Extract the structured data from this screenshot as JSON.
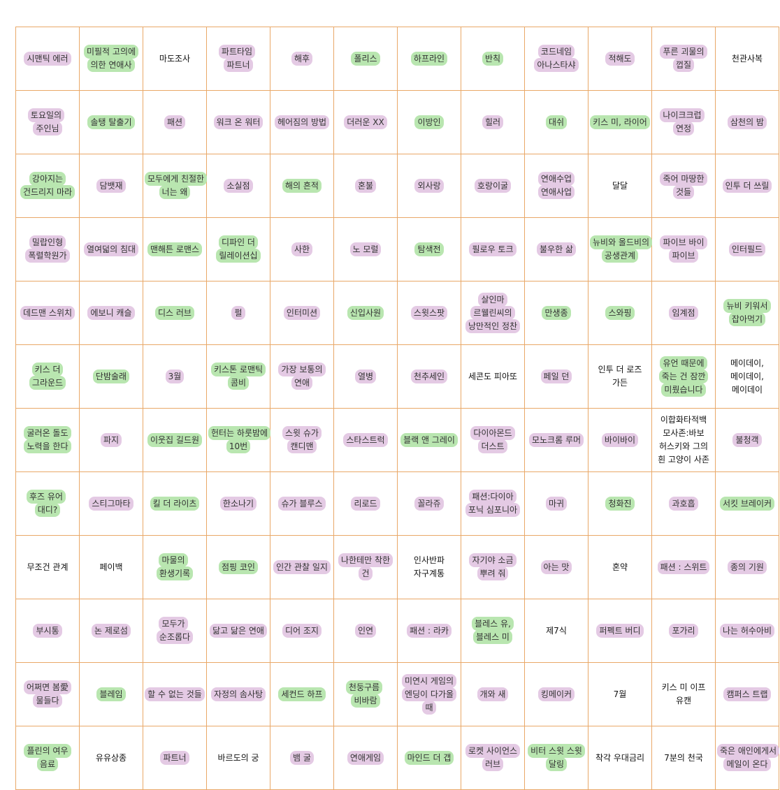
{
  "grid": {
    "rows": [
      [
        {
          "text": "시맨틱 에러",
          "highlight": "#e4cae4"
        },
        {
          "text": "미필적 고의에 의한 연애사",
          "highlight": "#b9e6b0"
        },
        {
          "text": "마도조사"
        },
        {
          "text": "파트타임 파트너",
          "highlight": "#e4cae4"
        },
        {
          "text": "해후",
          "highlight": "#e4cae4"
        },
        {
          "text": "폴리스",
          "highlight": "#b9e6b0"
        },
        {
          "text": "하프라인",
          "highlight": "#b9e6b0"
        },
        {
          "text": "반칙",
          "highlight": "#b9e6b0"
        },
        {
          "text": "코드네임 아나스타샤",
          "highlight": "#e4cae4"
        },
        {
          "text": "적해도",
          "highlight": "#e4cae4"
        },
        {
          "text": "푸른 괴물의 껍질",
          "highlight": "#e4cae4"
        },
        {
          "text": "천관사복"
        }
      ],
      [
        {
          "text": "토요일의 주인님",
          "highlight": "#e4cae4"
        },
        {
          "text": "솔탱 탈출기",
          "highlight": "#b9e6b0"
        },
        {
          "text": "패션",
          "highlight": "#e4cae4"
        },
        {
          "text": "워크 온 워터",
          "highlight": "#e4cae4"
        },
        {
          "text": "헤어짐의 방법",
          "highlight": "#e4cae4"
        },
        {
          "text": "더러운 XX",
          "highlight": "#e4cae4"
        },
        {
          "text": "이방인",
          "highlight": "#b9e6b0"
        },
        {
          "text": "힐러",
          "highlight": "#e4cae4"
        },
        {
          "text": "대쉬",
          "highlight": "#b9e6b0"
        },
        {
          "text": "키스 미, 라이어",
          "highlight": "#b9e6b0"
        },
        {
          "text": "나이크크럽 연정",
          "highlight": "#e4cae4"
        },
        {
          "text": "삼천의 밤",
          "highlight": "#e4cae4"
        }
      ],
      [
        {
          "text": "강아지는 건드리지 마라",
          "highlight": "#b9e6b0"
        },
        {
          "text": "담뱃재",
          "highlight": "#e4cae4"
        },
        {
          "text": "모두에게 친절한 너는 왜",
          "highlight": "#b9e6b0"
        },
        {
          "text": "소실점",
          "highlight": "#e4cae4"
        },
        {
          "text": "해의 흔적",
          "highlight": "#b9e6b0"
        },
        {
          "text": "혼불",
          "highlight": "#e4cae4"
        },
        {
          "text": "외사랑",
          "highlight": "#e4cae4"
        },
        {
          "text": "호랑이굴",
          "highlight": "#e4cae4"
        },
        {
          "text": "연애수업 연애사업",
          "highlight": "#e4cae4"
        },
        {
          "text": "달달"
        },
        {
          "text": "죽어 마땅한 것들",
          "highlight": "#e4cae4"
        },
        {
          "text": "인투 더 쓰릴",
          "highlight": "#e4cae4"
        }
      ],
      [
        {
          "text": "밀랍인형 폭렬학원가",
          "highlight": "#e4cae4"
        },
        {
          "text": "열여덟의 침대",
          "highlight": "#e4cae4"
        },
        {
          "text": "맨해튼 로맨스",
          "highlight": "#b9e6b0"
        },
        {
          "text": "디파인 더 릴레이션십",
          "highlight": "#b9e6b0"
        },
        {
          "text": "사한",
          "highlight": "#e4cae4"
        },
        {
          "text": "노 모럴",
          "highlight": "#e4cae4"
        },
        {
          "text": "탐색전",
          "highlight": "#b9e6b0"
        },
        {
          "text": "필로우 토크",
          "highlight": "#e4cae4"
        },
        {
          "text": "불우한 삶",
          "highlight": "#e4cae4"
        },
        {
          "text": "뉴비와 올드비의 공생관계",
          "highlight": "#b9e6b0"
        },
        {
          "text": "파이브 바이 파이브",
          "highlight": "#e4cae4"
        },
        {
          "text": "인터필드",
          "highlight": "#e4cae4"
        }
      ],
      [
        {
          "text": "데드맨 스위치",
          "highlight": "#e4cae4"
        },
        {
          "text": "에보니 캐슬",
          "highlight": "#e4cae4"
        },
        {
          "text": "디스 러브",
          "highlight": "#b9e6b0"
        },
        {
          "text": "펄",
          "highlight": "#e4cae4"
        },
        {
          "text": "인터미션",
          "highlight": "#e4cae4"
        },
        {
          "text": "신입사원",
          "highlight": "#b9e6b0"
        },
        {
          "text": "스윗스팟",
          "highlight": "#e4cae4"
        },
        {
          "text": "살인마 르웰린씨의 낭만적인 정찬",
          "highlight": "#e4cae4"
        },
        {
          "text": "만생종",
          "highlight": "#b9e6b0"
        },
        {
          "text": "스와핑",
          "highlight": "#b9e6b0"
        },
        {
          "text": "임계점",
          "highlight": "#e4cae4"
        },
        {
          "text": "뉴비 키워서 잡아먹기",
          "highlight": "#b9e6b0"
        }
      ],
      [
        {
          "text": "키스 더 그라운드",
          "highlight": "#b9e6b0"
        },
        {
          "text": "단밤술래",
          "highlight": "#b9e6b0"
        },
        {
          "text": "3월",
          "highlight": "#e4cae4"
        },
        {
          "text": "키스톤 로맨틱 콤비",
          "highlight": "#b9e6b0"
        },
        {
          "text": "가장 보통의 연애",
          "highlight": "#e4cae4"
        },
        {
          "text": "열병",
          "highlight": "#e4cae4"
        },
        {
          "text": "천추세인",
          "highlight": "#e4cae4"
        },
        {
          "text": "세콘도 피아또"
        },
        {
          "text": "페일 던",
          "highlight": "#e4cae4"
        },
        {
          "text": "인투 더 로즈 가든"
        },
        {
          "text": "유언 때문에 죽는 건 잠깐 미뤘습니다",
          "highlight": "#b9e6b0"
        },
        {
          "text": "메이데이, 메이데이, 메이데이"
        }
      ],
      [
        {
          "text": "굴러온 돌도 노력을 한다",
          "highlight": "#b9e6b0"
        },
        {
          "text": "파지",
          "highlight": "#e4cae4"
        },
        {
          "text": "이웃집 길드원",
          "highlight": "#b9e6b0"
        },
        {
          "text": "헌터는 하룻밤에 10번",
          "highlight": "#b9e6b0"
        },
        {
          "text": "스윗 슈가 캔디맨",
          "highlight": "#e4cae4"
        },
        {
          "text": "스타스트럭",
          "highlight": "#e4cae4"
        },
        {
          "text": "블랙 앤 그레이",
          "highlight": "#b9e6b0"
        },
        {
          "text": "다이아몬드 더스트",
          "highlight": "#e4cae4"
        },
        {
          "text": "모노크롬 루머",
          "highlight": "#e4cae4"
        },
        {
          "text": "바이바이",
          "highlight": "#e4cae4"
        },
        {
          "text": "이합화타적백 모사존:바보 허스키와 그의 흰 고양이 사존"
        },
        {
          "text": "불청객",
          "highlight": "#e4cae4"
        }
      ],
      [
        {
          "text": "후즈 유어 대디?",
          "highlight": "#b9e6b0"
        },
        {
          "text": "스티그마타",
          "highlight": "#e4cae4"
        },
        {
          "text": "킬 더 라이츠",
          "highlight": "#b9e6b0"
        },
        {
          "text": "한소나기",
          "highlight": "#e4cae4"
        },
        {
          "text": "슈가 블루스",
          "highlight": "#e4cae4"
        },
        {
          "text": "리로드",
          "highlight": "#e4cae4"
        },
        {
          "text": "꼴라쥬",
          "highlight": "#e4cae4"
        },
        {
          "text": "패션:다이아 포닉 심포니아",
          "highlight": "#e4cae4"
        },
        {
          "text": "마귀",
          "highlight": "#e4cae4"
        },
        {
          "text": "청화진",
          "highlight": "#b9e6b0"
        },
        {
          "text": "과호흡",
          "highlight": "#e4cae4"
        },
        {
          "text": "서킷 브레이커",
          "highlight": "#b9e6b0"
        }
      ],
      [
        {
          "text": "무조건 관계"
        },
        {
          "text": "페이백"
        },
        {
          "text": "마물의 환생기록",
          "highlight": "#b9e6b0"
        },
        {
          "text": "점핑 코인",
          "highlight": "#b9e6b0"
        },
        {
          "text": "인간 관찰 일지",
          "highlight": "#e4cae4"
        },
        {
          "text": "나한테만 착한 건",
          "highlight": "#e4cae4"
        },
        {
          "text": "인사반파 자구계통"
        },
        {
          "text": "자기야 소금 뿌려 줘",
          "highlight": "#e4cae4"
        },
        {
          "text": "아는 맛",
          "highlight": "#e4cae4"
        },
        {
          "text": "혼약"
        },
        {
          "text": "패션 : 스위트",
          "highlight": "#e4cae4"
        },
        {
          "text": "종의 기원",
          "highlight": "#e4cae4"
        }
      ],
      [
        {
          "text": "부시통",
          "highlight": "#e4cae4"
        },
        {
          "text": "논 제로섬",
          "highlight": "#e4cae4"
        },
        {
          "text": "모두가 순조롭다",
          "highlight": "#e4cae4"
        },
        {
          "text": "닮고 닮은 연애",
          "highlight": "#e4cae4"
        },
        {
          "text": "디어 조지",
          "highlight": "#e4cae4"
        },
        {
          "text": "인연",
          "highlight": "#e4cae4"
        },
        {
          "text": "패션 : 라카",
          "highlight": "#e4cae4"
        },
        {
          "text": "블레스 유, 블레스 미",
          "highlight": "#b9e6b0"
        },
        {
          "text": "제7식"
        },
        {
          "text": "퍼펙트 버디",
          "highlight": "#e4cae4"
        },
        {
          "text": "포가리",
          "highlight": "#e4cae4"
        },
        {
          "text": "나는 허수아비",
          "highlight": "#e4cae4"
        }
      ],
      [
        {
          "text": "어쩌면 봄愛 물들다",
          "highlight": "#e4cae4"
        },
        {
          "text": "블레임",
          "highlight": "#b9e6b0"
        },
        {
          "text": "할 수 없는 것들",
          "highlight": "#e4cae4"
        },
        {
          "text": "자정의 솜사탕",
          "highlight": "#e4cae4"
        },
        {
          "text": "세컨드 하프",
          "highlight": "#b9e6b0"
        },
        {
          "text": "천둥구름 비바람",
          "highlight": "#b9e6b0"
        },
        {
          "text": "미연시 게임의 엔딩이 다가올 때",
          "highlight": "#e4cae4"
        },
        {
          "text": "개와 새",
          "highlight": "#e4cae4"
        },
        {
          "text": "킹메이커",
          "highlight": "#e4cae4"
        },
        {
          "text": "7월"
        },
        {
          "text": "키스 미 이프 유캔"
        },
        {
          "text": "캠퍼스 트랩",
          "highlight": "#e4cae4"
        }
      ],
      [
        {
          "text": "플린의 여우 음료",
          "highlight": "#b9e6b0"
        },
        {
          "text": "유유상종"
        },
        {
          "text": "파트너",
          "highlight": "#e4cae4"
        },
        {
          "text": "바르도의 궁"
        },
        {
          "text": "뱀 굴",
          "highlight": "#e4cae4"
        },
        {
          "text": "연애게임",
          "highlight": "#e4cae4"
        },
        {
          "text": "마인드 더 갭",
          "highlight": "#b9e6b0"
        },
        {
          "text": "로켓 사이언스 러브",
          "highlight": "#e4cae4"
        },
        {
          "text": "비터 스윗 스윗 달링",
          "highlight": "#b9e6b0"
        },
        {
          "text": "착각 우대금리"
        },
        {
          "text": "7분의 천국"
        },
        {
          "text": "죽은 애인에게서 메일이 온다",
          "highlight": "#e4cae4"
        }
      ]
    ]
  }
}
